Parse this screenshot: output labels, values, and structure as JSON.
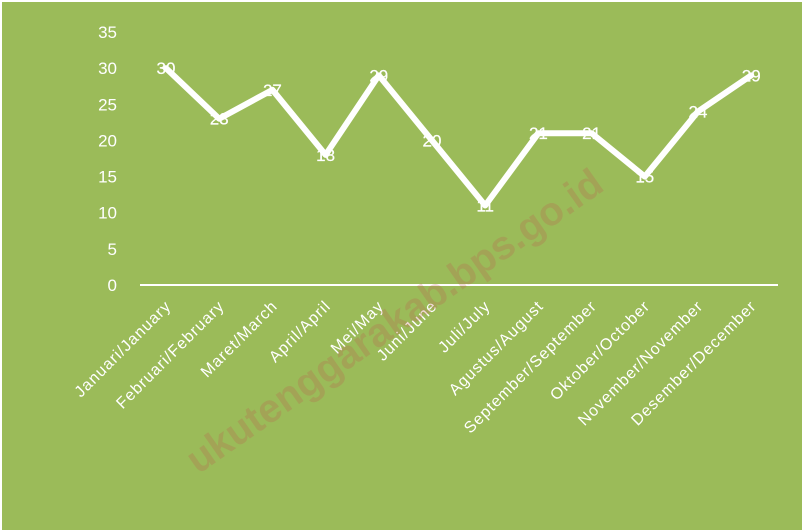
{
  "chart_data": {
    "type": "line",
    "title": "",
    "xlabel": "",
    "ylabel": "",
    "categories": [
      "Januari/January",
      "Februari/February",
      "Maret/March",
      "April/April",
      "Mei/May",
      "Juni/June",
      "Juli/July",
      "Agustus/August",
      "September/September",
      "Oktober/October",
      "November/November",
      "Desember/December"
    ],
    "series": [
      {
        "values": [
          30,
          23,
          27,
          18,
          29,
          20,
          11,
          21,
          21,
          15,
          24,
          29
        ]
      }
    ],
    "ylim": [
      0,
      35
    ],
    "yticks": [
      0,
      5,
      10,
      15,
      20,
      25,
      30,
      35
    ],
    "data_labels": true,
    "grid": false,
    "drop_lines": true,
    "colors": {
      "background": "#9bbb59",
      "line": "#ffffff",
      "text": "#ffffff"
    }
  },
  "watermark": "ukutenggarakab.bps.go.id"
}
